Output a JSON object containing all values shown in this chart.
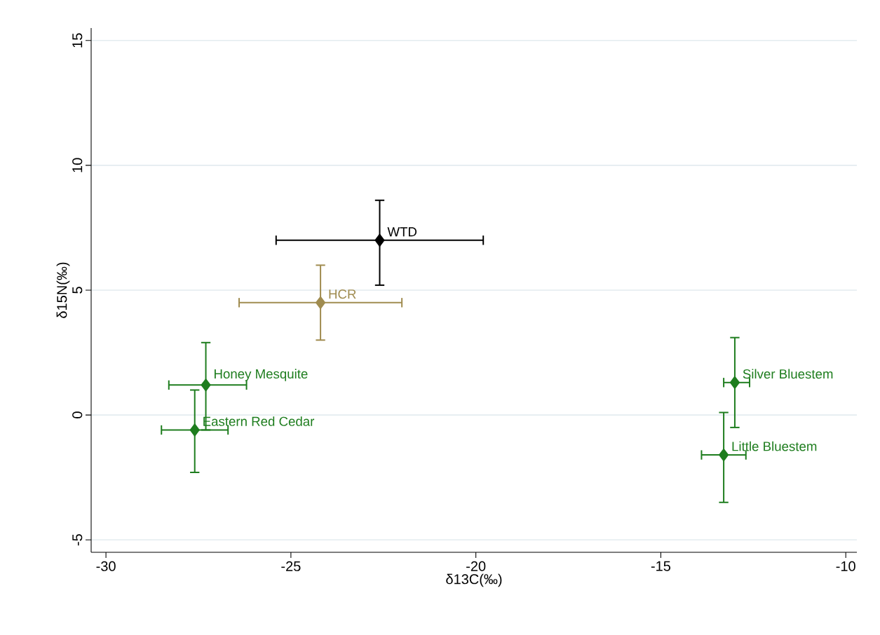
{
  "chart_data": {
    "type": "scatter",
    "xlabel": "δ13C(‰)",
    "ylabel": "δ15N(‰)",
    "xlim": [
      -30.4,
      -9.7
    ],
    "ylim": [
      -5.5,
      15.5
    ],
    "xticks": [
      -30,
      -25,
      -20,
      -15,
      -10
    ],
    "yticks": [
      -5,
      0,
      5,
      10,
      15
    ],
    "grid": "y",
    "marker": "diamond",
    "series": [
      {
        "name": "WTD",
        "color": "#000000",
        "x": [
          -22.6
        ],
        "values": [
          7.0
        ],
        "xerrors": [
          [
            -25.4,
            -19.8
          ]
        ],
        "errors": [
          [
            5.2,
            8.6
          ]
        ]
      },
      {
        "name": "HCR",
        "color": "#a08c50",
        "x": [
          -24.2
        ],
        "values": [
          4.5
        ],
        "xerrors": [
          [
            -26.4,
            -22.0
          ]
        ],
        "errors": [
          [
            3.0,
            6.0
          ]
        ]
      },
      {
        "name": "Honey Mesquite",
        "color": "#1e7d1e",
        "x": [
          -27.3
        ],
        "values": [
          1.2
        ],
        "xerrors": [
          [
            -28.3,
            -26.2
          ]
        ],
        "errors": [
          [
            -0.6,
            2.9
          ]
        ]
      },
      {
        "name": "Eastern Red Cedar",
        "color": "#1e7d1e",
        "x": [
          -27.6
        ],
        "values": [
          -0.6
        ],
        "xerrors": [
          [
            -28.5,
            -26.7
          ]
        ],
        "errors": [
          [
            -2.3,
            1.0
          ]
        ]
      },
      {
        "name": "Silver Bluestem",
        "color": "#1e7d1e",
        "x": [
          -13.0
        ],
        "values": [
          1.3
        ],
        "xerrors": [
          [
            -13.3,
            -12.6
          ]
        ],
        "errors": [
          [
            -0.5,
            3.1
          ]
        ]
      },
      {
        "name": "Little Bluestem",
        "color": "#1e7d1e",
        "x": [
          -13.3
        ],
        "values": [
          -1.6
        ],
        "xerrors": [
          [
            -13.9,
            -12.7
          ]
        ],
        "errors": [
          [
            -3.5,
            0.1
          ]
        ]
      }
    ]
  }
}
